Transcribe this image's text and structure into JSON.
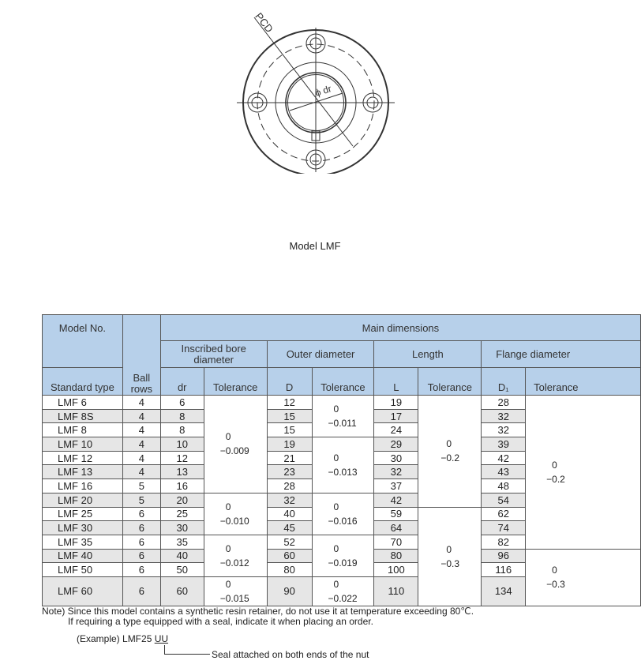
{
  "drawing": {
    "pcd_label": "PCD",
    "dr_label": "ϕ dr"
  },
  "caption": "Model LMF",
  "table": {
    "headers": {
      "model_no": "Model No.",
      "standard_type": "Standard type",
      "ball_rows": "Ball rows",
      "main": "Main dimensions",
      "bore": "Inscribed bore diameter",
      "outer": "Outer diameter",
      "length": "Length",
      "flange": "Flange diameter",
      "dr": "dr",
      "D": "D",
      "L": "L",
      "D1": "D₁",
      "tolerance": "Tolerance"
    },
    "rows": [
      {
        "model": "LMF 6",
        "ball": "4",
        "dr": "6",
        "D": "12",
        "L": "19",
        "D1": "28"
      },
      {
        "model": "LMF 8S",
        "ball": "4",
        "dr": "8",
        "D": "15",
        "L": "17",
        "D1": "32"
      },
      {
        "model": "LMF 8",
        "ball": "4",
        "dr": "8",
        "D": "15",
        "L": "24",
        "D1": "32"
      },
      {
        "model": "LMF 10",
        "ball": "4",
        "dr": "10",
        "D": "19",
        "L": "29",
        "D1": "39"
      },
      {
        "model": "LMF 12",
        "ball": "4",
        "dr": "12",
        "D": "21",
        "L": "30",
        "D1": "42"
      },
      {
        "model": "LMF 13",
        "ball": "4",
        "dr": "13",
        "D": "23",
        "L": "32",
        "D1": "43"
      },
      {
        "model": "LMF 16",
        "ball": "5",
        "dr": "16",
        "D": "28",
        "L": "37",
        "D1": "48"
      },
      {
        "model": "LMF 20",
        "ball": "5",
        "dr": "20",
        "D": "32",
        "L": "42",
        "D1": "54"
      },
      {
        "model": "LMF 25",
        "ball": "6",
        "dr": "25",
        "D": "40",
        "L": "59",
        "D1": "62"
      },
      {
        "model": "LMF 30",
        "ball": "6",
        "dr": "30",
        "D": "45",
        "L": "64",
        "D1": "74"
      },
      {
        "model": "LMF 35",
        "ball": "6",
        "dr": "35",
        "D": "52",
        "L": "70",
        "D1": "82"
      },
      {
        "model": "LMF 40",
        "ball": "6",
        "dr": "40",
        "D": "60",
        "L": "80",
        "D1": "96"
      },
      {
        "model": "LMF 50",
        "ball": "6",
        "dr": "50",
        "D": "80",
        "L": "100",
        "D1": "116"
      },
      {
        "model": "LMF 60",
        "ball": "6",
        "dr": "60",
        "D": "90",
        "L": "110",
        "D1": "134"
      }
    ],
    "tolerances": {
      "dr": [
        {
          "start": 0,
          "span": 7,
          "upper": "0",
          "lower": "−0.009"
        },
        {
          "start": 7,
          "span": 3,
          "upper": "0",
          "lower": "−0.010"
        },
        {
          "start": 10,
          "span": 3,
          "upper": "0",
          "lower": "−0.012"
        },
        {
          "start": 13,
          "span": 1,
          "upper": "0",
          "lower": "−0.015"
        }
      ],
      "D": [
        {
          "start": 0,
          "span": 3,
          "upper": "0",
          "lower": "−0.011"
        },
        {
          "start": 3,
          "span": 4,
          "upper": "0",
          "lower": "−0.013"
        },
        {
          "start": 7,
          "span": 3,
          "upper": "0",
          "lower": "−0.016"
        },
        {
          "start": 10,
          "span": 3,
          "upper": "0",
          "lower": "−0.019"
        },
        {
          "start": 13,
          "span": 1,
          "upper": "0",
          "lower": "−0.022"
        }
      ],
      "L": [
        {
          "start": 0,
          "span": 8,
          "upper": "0",
          "lower": "−0.2"
        },
        {
          "start": 8,
          "span": 6,
          "upper": "0",
          "lower": "−0.3"
        }
      ],
      "D1": [
        {
          "start": 0,
          "span": 11,
          "upper": "0",
          "lower": "−0.2"
        },
        {
          "start": 11,
          "span": 3,
          "upper": "0",
          "lower": "−0.3"
        }
      ]
    }
  },
  "notes": {
    "line1": "Note) Since this model contains a synthetic resin retainer, do not use it at temperature exceeding 80℃.",
    "line2": "If requiring a type equipped with a seal, indicate it when placing an order.",
    "example_prefix": "(Example) LMF25 ",
    "example_suffix": "UU",
    "seal_label": "Seal attached on both ends of the nut"
  },
  "colors": {
    "header": "#b7d0ea",
    "shaded": "#e6e6e6"
  }
}
